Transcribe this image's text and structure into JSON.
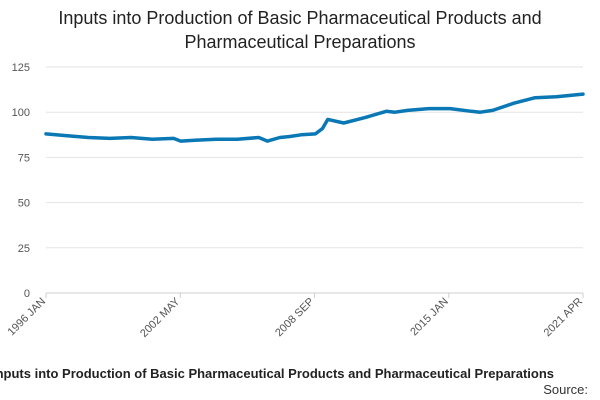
{
  "chart_data": {
    "type": "line",
    "title_lines": [
      "Inputs into Production of Basic Pharmaceutical Products and",
      "Pharmaceutical Preparations"
    ],
    "x_ticks": [
      "1996 JAN",
      "2002 MAY",
      "2008 SEP",
      "2015 JAN",
      "2021 APR"
    ],
    "ylim": [
      0,
      125
    ],
    "y_ticks": [
      0,
      25,
      50,
      75,
      100,
      125
    ],
    "grid": true,
    "line_color": "#0a78b5",
    "series": [
      {
        "x": [
          "1996-01",
          "1997-01",
          "1998-01",
          "1999-01",
          "2000-01",
          "2001-01",
          "2002-01",
          "2002-05",
          "2003-01",
          "2004-01",
          "2005-01",
          "2006-01",
          "2006-06",
          "2007-01",
          "2007-06",
          "2008-01",
          "2008-09",
          "2009-01",
          "2009-04",
          "2010-01",
          "2011-01",
          "2012-01",
          "2012-06",
          "2013-01",
          "2014-01",
          "2015-01",
          "2016-01",
          "2016-06",
          "2017-01",
          "2018-01",
          "2019-01",
          "2020-01",
          "2021-04"
        ],
        "values": [
          88,
          87,
          86,
          85.5,
          86,
          85,
          85.5,
          84,
          84.5,
          85,
          85,
          86,
          84,
          86,
          86.5,
          87.5,
          88,
          91,
          96,
          94,
          97,
          100.5,
          100,
          101,
          102,
          102,
          100.5,
          100,
          101,
          105,
          108,
          108.5,
          110
        ]
      }
    ]
  },
  "footer": {
    "title": "Inputs into Production of Basic Pharmaceutical Products and Pharmaceutical Preparations",
    "source": "Source:"
  }
}
